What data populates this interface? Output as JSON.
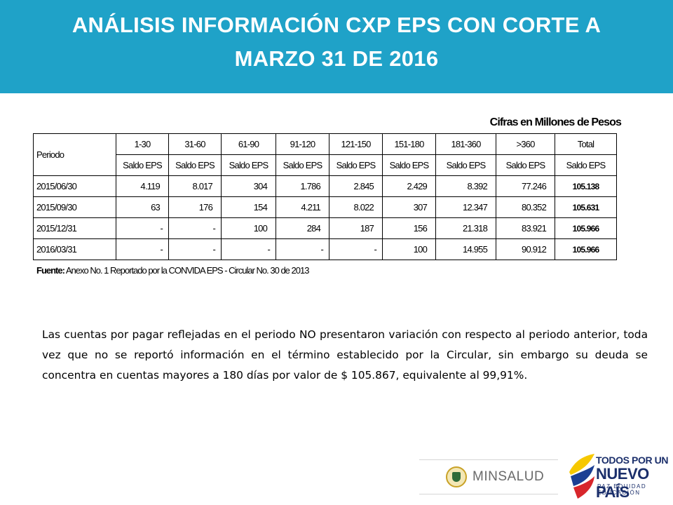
{
  "header": {
    "title_line1": "ANÁLISIS INFORMACIÓN CXP EPS CON CORTE A",
    "title_line2": "MARZO 31 DE 2016",
    "background_color": "#1fa2c8"
  },
  "table": {
    "units_note": "Cifras en Millones de Pesos",
    "period_header": "Periodo",
    "ranges": [
      "1-30",
      "31-60",
      "61-90",
      "91-120",
      "121-150",
      "151-180",
      "181-360",
      ">360",
      "Total"
    ],
    "sub_header": "Saldo EPS",
    "rows": [
      {
        "period": "2015/06/30",
        "values": [
          "4.119",
          "8.017",
          "304",
          "1.786",
          "2.845",
          "2.429",
          "8.392",
          "77.246"
        ],
        "total": "105.138"
      },
      {
        "period": "2015/09/30",
        "values": [
          "63",
          "176",
          "154",
          "4.211",
          "8.022",
          "307",
          "12.347",
          "80.352"
        ],
        "total": "105.631"
      },
      {
        "period": "2015/12/31",
        "values": [
          "-",
          "-",
          "100",
          "284",
          "187",
          "156",
          "21.318",
          "83.921"
        ],
        "total": "105.966"
      },
      {
        "period": "2016/03/31",
        "values": [
          "-",
          "-",
          "-",
          "-",
          "-",
          "100",
          "14.955",
          "90.912"
        ],
        "total": "105.966"
      }
    ],
    "source_label": "Fuente:",
    "source_text": " Anexo No. 1 Reportado por la CONVIDA EPS - Circular No. 30 de 2013"
  },
  "paragraph": "Las cuentas por pagar reflejadas en el periodo NO presentaron variación con respecto al periodo anterior, toda vez que no se reportó información en el término establecido por la Circular, sin embargo su deuda se concentra en cuentas mayores a 180 días por valor de $ 105.867, equivalente al 99,91%.",
  "footer": {
    "minsalud": "MINSALUD",
    "tpun_line1": "TODOS POR UN",
    "tpun_line2": "NUEVO PAÍS",
    "tpun_line3": "PAZ  EQUIDAD  EDUCACIÓN",
    "seal_icon": "colombia-seal-icon",
    "flag_icon": "colombia-flag-icon"
  }
}
